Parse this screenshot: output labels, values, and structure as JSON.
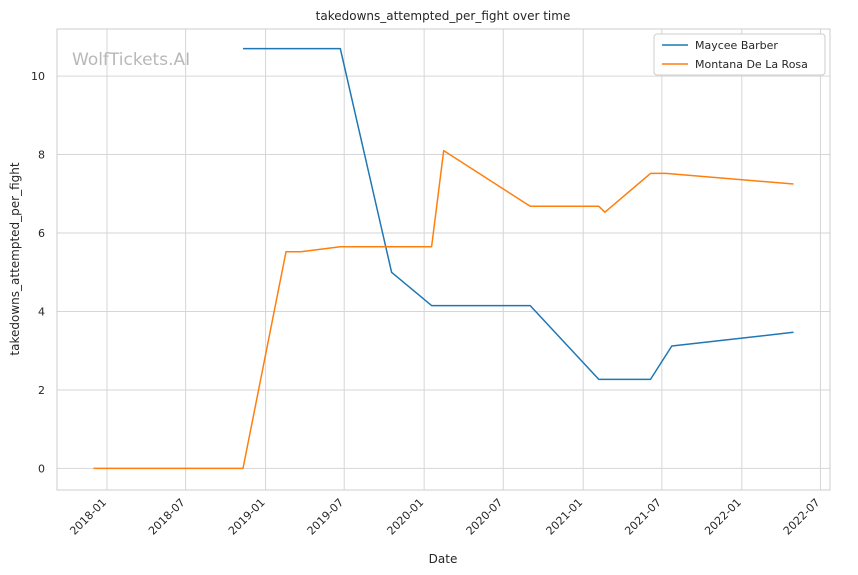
{
  "watermark": "WolfTickets.AI",
  "chart_data": {
    "type": "line",
    "title": "takedowns_attempted_per_fight over time",
    "xlabel": "Date",
    "ylabel": "takedowns_attempted_per_fight",
    "x_ticks": [
      "2018-01",
      "2018-07",
      "2019-01",
      "2019-07",
      "2020-01",
      "2020-07",
      "2021-01",
      "2021-07",
      "2022-01",
      "2022-07"
    ],
    "y_ticks": [
      0,
      2,
      4,
      6,
      8,
      10
    ],
    "xlim": [
      "2017-09-08",
      "2022-07-23"
    ],
    "ylim": [
      -0.55,
      11.2
    ],
    "grid": true,
    "legend_position": "top-right",
    "series": [
      {
        "name": "Maycee Barber",
        "color": "#1f77b4",
        "points": [
          [
            "2018-11-10",
            10.7
          ],
          [
            "2019-06-22",
            10.7
          ],
          [
            "2019-10-18",
            5.0
          ],
          [
            "2020-01-18",
            4.15
          ],
          [
            "2020-09-01",
            4.15
          ],
          [
            "2021-02-06",
            2.27
          ],
          [
            "2021-06-05",
            2.27
          ],
          [
            "2021-07-24",
            3.12
          ],
          [
            "2022-04-30",
            3.47
          ]
        ]
      },
      {
        "name": "Montana De La Rosa",
        "color": "#ff7f0e",
        "points": [
          [
            "2017-12-01",
            0.0
          ],
          [
            "2018-11-10",
            0.0
          ],
          [
            "2019-02-17",
            5.52
          ],
          [
            "2019-03-23",
            5.52
          ],
          [
            "2019-06-22",
            5.65
          ],
          [
            "2020-01-18",
            5.65
          ],
          [
            "2020-02-15",
            8.1
          ],
          [
            "2020-09-01",
            6.68
          ],
          [
            "2021-02-06",
            6.68
          ],
          [
            "2021-02-20",
            6.53
          ],
          [
            "2021-06-05",
            7.52
          ],
          [
            "2021-07-10",
            7.52
          ],
          [
            "2022-04-30",
            7.25
          ]
        ]
      }
    ]
  }
}
